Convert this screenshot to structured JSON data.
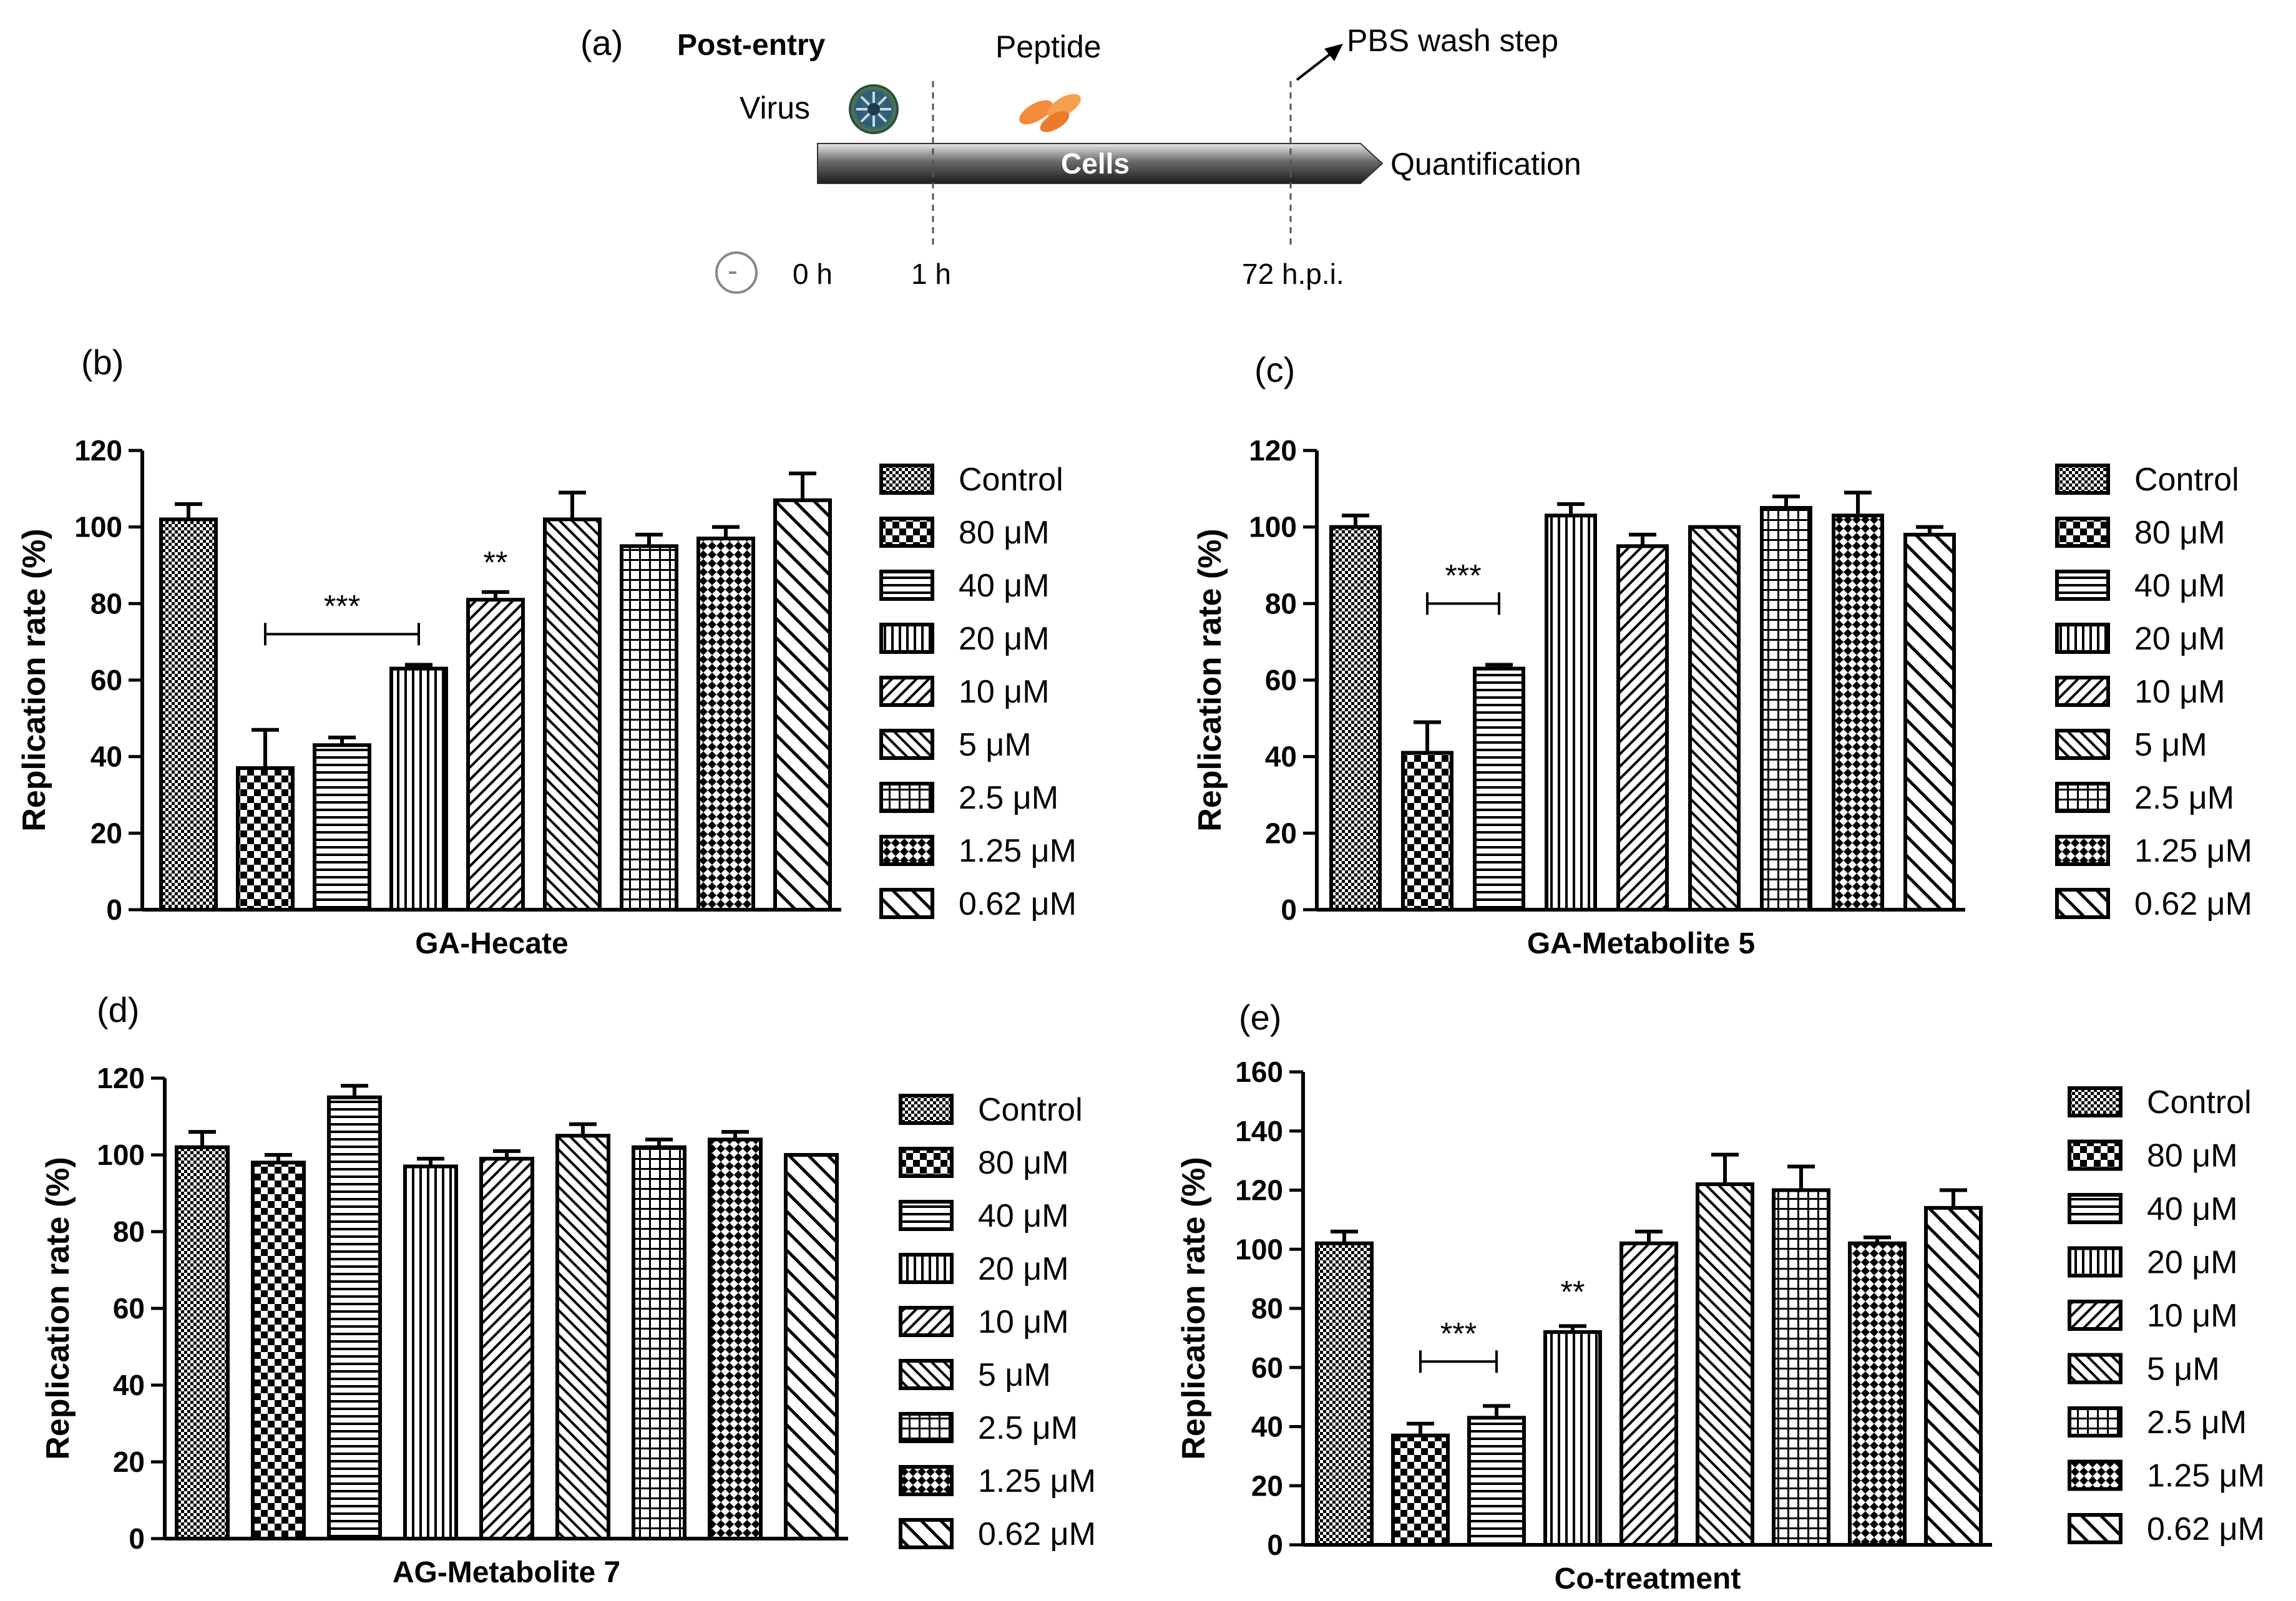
{
  "schematic": {
    "panel_label": "(a)",
    "title": "Post-entry",
    "virus_label": "Virus",
    "peptide_label": "Peptide",
    "cells_label": "Cells",
    "wash_label": "PBS wash step",
    "quant_label": "Quantification",
    "t0": "0 h",
    "t1": "1 h",
    "t2": "72 h.p.i."
  },
  "legend_labels": [
    "Control",
    "80 μM",
    "40 μM",
    "20 μM",
    "10 μM",
    "5 μM",
    "2.5 μM",
    "1.25 μM",
    "0.62 μM"
  ],
  "chart_data": [
    {
      "type": "bar",
      "panel_label": "(b)",
      "xlabel": "GA-Hecate",
      "ylabel": "Replication rate (%)",
      "ylim": [
        0,
        120
      ],
      "yticks": [
        "0",
        "20",
        "40",
        "60",
        "80",
        "100",
        "120"
      ],
      "categories": [
        "Control",
        "80 μM",
        "40 μM",
        "20 μM",
        "10 μM",
        "5 μM",
        "2.5 μM",
        "1.25 μM",
        "0.62 μM"
      ],
      "values": [
        102,
        37,
        43,
        63,
        81,
        102,
        95,
        97,
        107
      ],
      "errors": [
        4,
        10,
        2,
        1,
        2,
        7,
        3,
        3,
        7
      ],
      "annotations": [
        {
          "text": "***",
          "from": 1,
          "to": 3,
          "y": 72
        },
        {
          "text": "**",
          "at": 4,
          "y": 88
        }
      ]
    },
    {
      "type": "bar",
      "panel_label": "(c)",
      "xlabel": "GA-Metabolite 5",
      "ylabel": "Replication rate (%)",
      "ylim": [
        0,
        120
      ],
      "yticks": [
        "0",
        "20",
        "40",
        "60",
        "80",
        "100",
        "120"
      ],
      "categories": [
        "Control",
        "80 μM",
        "40 μM",
        "20 μM",
        "10 μM",
        "5 μM",
        "2.5 μM",
        "1.25 μM",
        "0.62 μM"
      ],
      "values": [
        100,
        41,
        63,
        103,
        95,
        100,
        105,
        103,
        98
      ],
      "errors": [
        3,
        8,
        1,
        3,
        3,
        0,
        3,
        6,
        2
      ],
      "annotations": [
        {
          "text": "***",
          "from": 1,
          "to": 2,
          "y": 80
        }
      ]
    },
    {
      "type": "bar",
      "panel_label": "(d)",
      "xlabel": "AG-Metabolite 7",
      "ylabel": "Replication rate (%)",
      "ylim": [
        0,
        120
      ],
      "yticks": [
        "0",
        "20",
        "40",
        "60",
        "80",
        "100",
        "120"
      ],
      "categories": [
        "Control",
        "80 μM",
        "40 μM",
        "20 μM",
        "10 μM",
        "5 μM",
        "2.5 μM",
        "1.25 μM",
        "0.62 μM"
      ],
      "values": [
        102,
        98,
        115,
        97,
        99,
        105,
        102,
        104,
        100
      ],
      "errors": [
        4,
        2,
        3,
        2,
        2,
        3,
        2,
        2,
        0
      ],
      "annotations": []
    },
    {
      "type": "bar",
      "panel_label": "(e)",
      "xlabel": "Co-treatment",
      "ylabel": "Replication rate (%)",
      "ylim": [
        0,
        160
      ],
      "yticks": [
        "0",
        "20",
        "40",
        "60",
        "80",
        "100",
        "120",
        "140",
        "160"
      ],
      "categories": [
        "Control",
        "80 μM",
        "40 μM",
        "20 μM",
        "10 μM",
        "5 μM",
        "2.5 μM",
        "1.25 μM",
        "0.62 μM"
      ],
      "values": [
        102,
        37,
        43,
        72,
        102,
        122,
        120,
        102,
        114
      ],
      "errors": [
        4,
        4,
        4,
        2,
        4,
        10,
        8,
        2,
        6
      ],
      "annotations": [
        {
          "text": "***",
          "from": 1,
          "to": 2,
          "y": 62
        },
        {
          "text": "**",
          "at": 3,
          "y": 82
        }
      ]
    }
  ]
}
